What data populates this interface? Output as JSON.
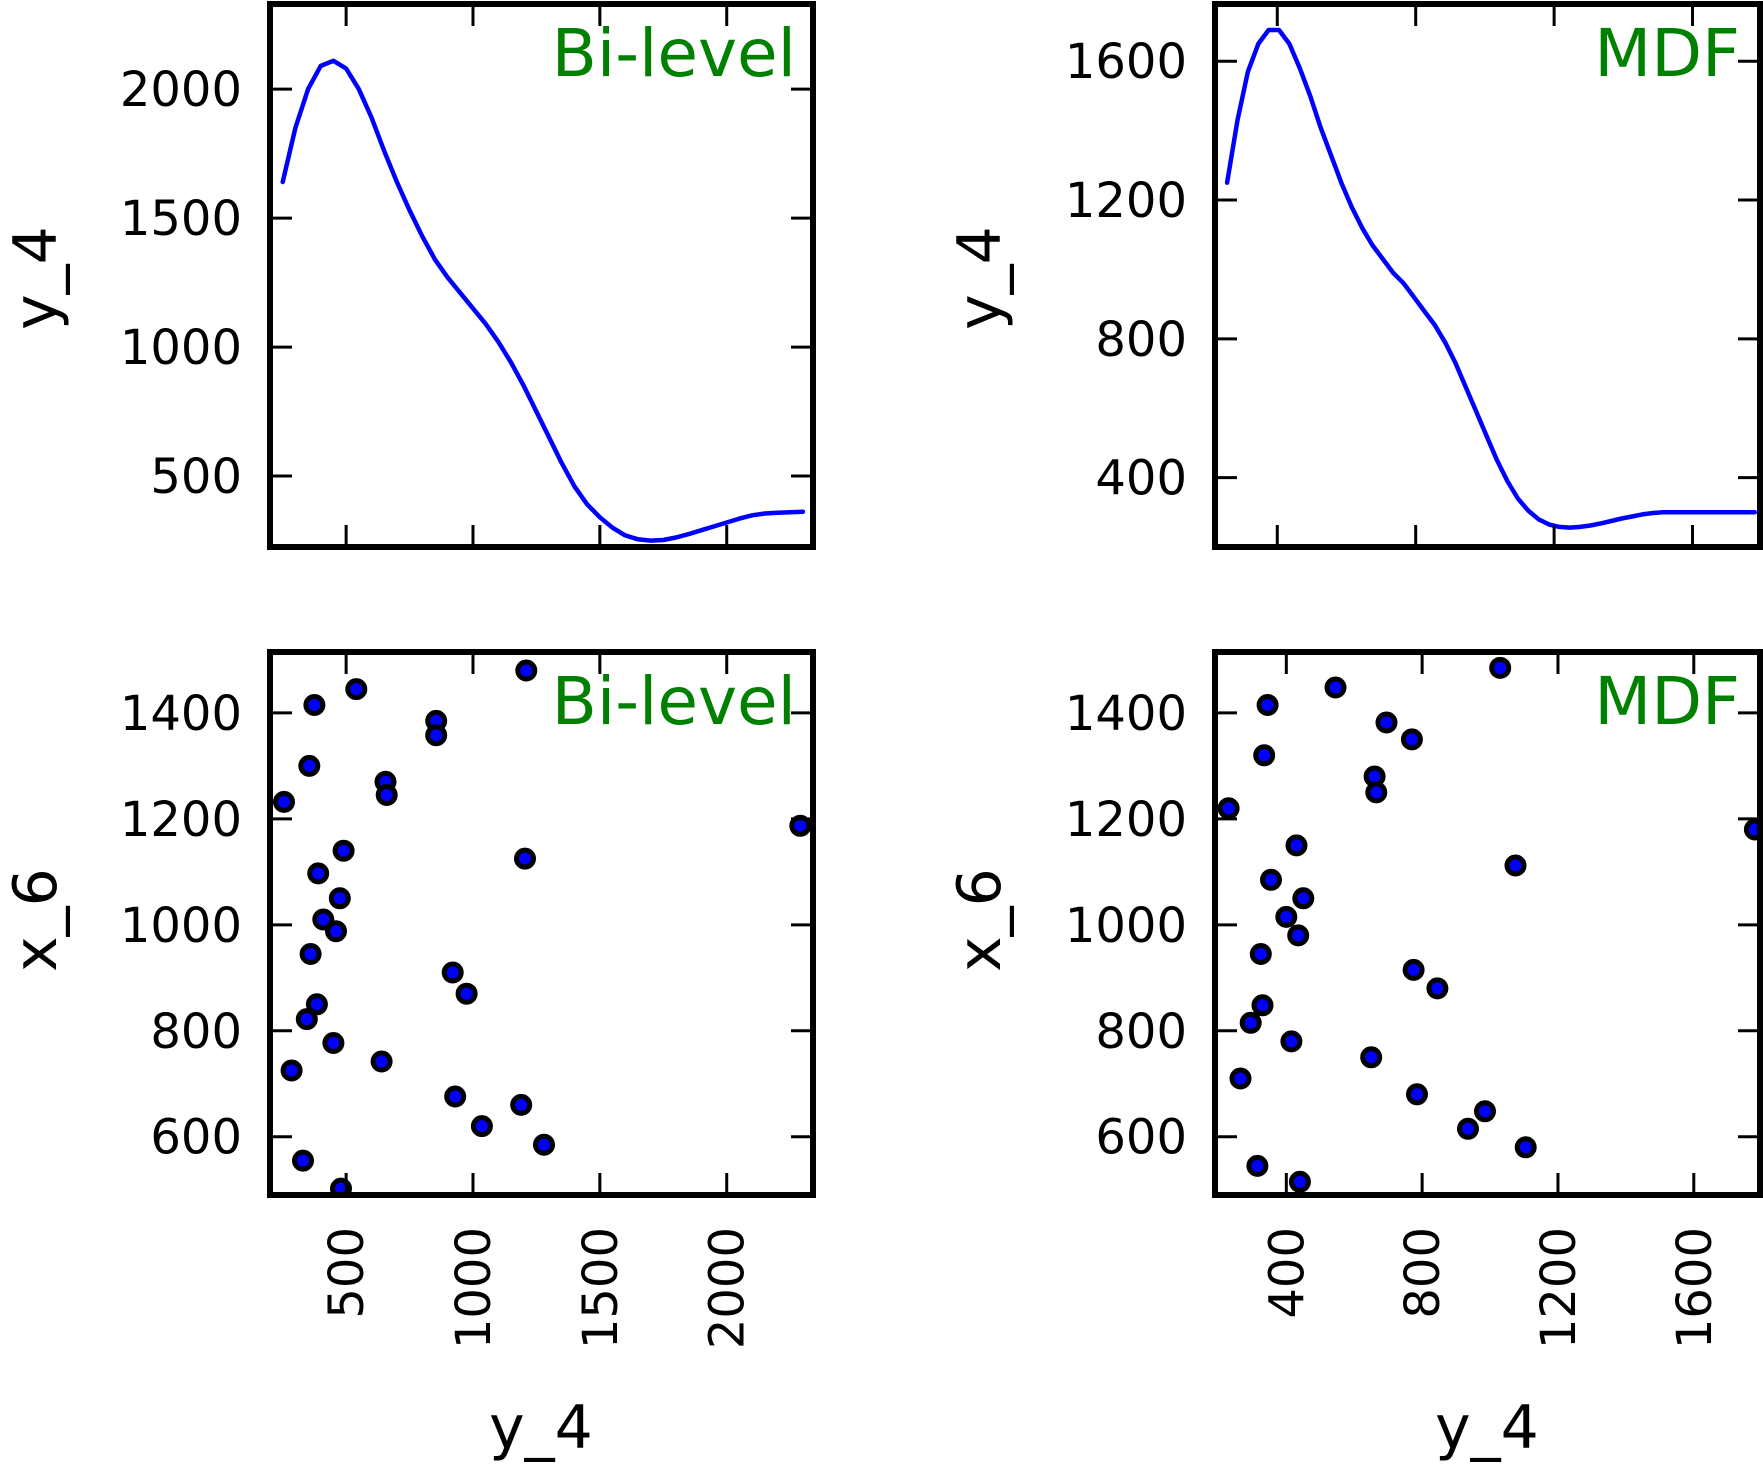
{
  "chart_data": [
    {
      "id": "top-left",
      "type": "line",
      "panel_label": "Bi-level",
      "ylabel": "y_4",
      "xlabel": "",
      "xlim": [
        200,
        2340
      ],
      "ylim": [
        225,
        2330
      ],
      "xticks": [
        500,
        1000,
        1500,
        2000
      ],
      "yticks": [
        500,
        1000,
        1500,
        2000
      ],
      "xtick_labels": [],
      "ytick_labels": [
        "500",
        "1000",
        "1500",
        "2000"
      ],
      "x": [
        250,
        300,
        350,
        400,
        450,
        500,
        550,
        600,
        650,
        700,
        750,
        800,
        850,
        900,
        950,
        1000,
        1050,
        1100,
        1150,
        1200,
        1250,
        1300,
        1350,
        1400,
        1450,
        1500,
        1550,
        1600,
        1650,
        1700,
        1750,
        1800,
        1850,
        1900,
        1950,
        2000,
        2050,
        2100,
        2150,
        2200,
        2250,
        2300
      ],
      "y": [
        1640,
        1850,
        2000,
        2090,
        2110,
        2080,
        2000,
        1890,
        1760,
        1640,
        1530,
        1430,
        1340,
        1270,
        1210,
        1150,
        1090,
        1020,
        940,
        850,
        750,
        650,
        550,
        460,
        390,
        340,
        300,
        270,
        255,
        250,
        252,
        262,
        275,
        290,
        305,
        320,
        335,
        348,
        355,
        358,
        360,
        362
      ]
    },
    {
      "id": "top-right",
      "type": "line",
      "panel_label": "MDF",
      "ylabel": "y_4",
      "xlabel": "",
      "xlim": [
        220,
        1795
      ],
      "ylim": [
        200,
        1765
      ],
      "xticks": [
        400,
        800,
        1200,
        1600
      ],
      "yticks": [
        400,
        800,
        1200,
        1600
      ],
      "xtick_labels": [],
      "ytick_labels": [
        "400",
        "800",
        "1200",
        "1600"
      ],
      "x": [
        255,
        285,
        315,
        345,
        375,
        405,
        435,
        465,
        495,
        525,
        555,
        585,
        615,
        645,
        675,
        705,
        735,
        765,
        795,
        825,
        855,
        885,
        915,
        945,
        975,
        1005,
        1035,
        1065,
        1095,
        1125,
        1155,
        1185,
        1215,
        1245,
        1275,
        1305,
        1335,
        1365,
        1395,
        1425,
        1455,
        1485,
        1515,
        1545,
        1575,
        1605,
        1635,
        1665,
        1695,
        1725,
        1755,
        1780
      ],
      "y": [
        1250,
        1430,
        1570,
        1650,
        1690,
        1690,
        1650,
        1580,
        1500,
        1410,
        1330,
        1250,
        1180,
        1120,
        1070,
        1030,
        990,
        960,
        920,
        880,
        840,
        790,
        730,
        660,
        590,
        520,
        450,
        390,
        340,
        305,
        280,
        265,
        258,
        256,
        258,
        262,
        268,
        275,
        282,
        288,
        294,
        298,
        300,
        300,
        300,
        300,
        300,
        300,
        300,
        300,
        300,
        300
      ]
    },
    {
      "id": "bottom-left",
      "type": "scatter",
      "panel_label": "Bi-level",
      "ylabel": "x_6",
      "xlabel": "y_4",
      "xlim": [
        200,
        2340
      ],
      "ylim": [
        490,
        1515
      ],
      "xticks": [
        500,
        1000,
        1500,
        2000
      ],
      "yticks": [
        600,
        800,
        1000,
        1200,
        1400
      ],
      "xtick_labels": [
        "500",
        "1000",
        "1500",
        "2000"
      ],
      "ytick_labels": [
        "600",
        "800",
        "1000",
        "1200",
        "1400"
      ],
      "points": [
        {
          "x": 255,
          "y": 1232
        },
        {
          "x": 285,
          "y": 725
        },
        {
          "x": 330,
          "y": 555
        },
        {
          "x": 345,
          "y": 822
        },
        {
          "x": 355,
          "y": 1300
        },
        {
          "x": 360,
          "y": 945
        },
        {
          "x": 375,
          "y": 1415
        },
        {
          "x": 385,
          "y": 850
        },
        {
          "x": 390,
          "y": 1097
        },
        {
          "x": 410,
          "y": 1010
        },
        {
          "x": 450,
          "y": 777
        },
        {
          "x": 460,
          "y": 988
        },
        {
          "x": 475,
          "y": 1050
        },
        {
          "x": 480,
          "y": 502
        },
        {
          "x": 490,
          "y": 1140
        },
        {
          "x": 540,
          "y": 1445
        },
        {
          "x": 640,
          "y": 742
        },
        {
          "x": 655,
          "y": 1270
        },
        {
          "x": 660,
          "y": 1245
        },
        {
          "x": 855,
          "y": 1385
        },
        {
          "x": 855,
          "y": 1358
        },
        {
          "x": 920,
          "y": 910
        },
        {
          "x": 930,
          "y": 676
        },
        {
          "x": 975,
          "y": 870
        },
        {
          "x": 1035,
          "y": 620
        },
        {
          "x": 1190,
          "y": 660
        },
        {
          "x": 1205,
          "y": 1125
        },
        {
          "x": 1210,
          "y": 1480
        },
        {
          "x": 1280,
          "y": 585
        },
        {
          "x": 2290,
          "y": 1187
        }
      ]
    },
    {
      "id": "bottom-right",
      "type": "scatter",
      "panel_label": "MDF",
      "ylabel": "x_6",
      "xlabel": "y_4",
      "xlim": [
        190,
        1795
      ],
      "ylim": [
        490,
        1515
      ],
      "xticks": [
        400,
        800,
        1200,
        1600
      ],
      "yticks": [
        600,
        800,
        1000,
        1200,
        1400
      ],
      "xtick_labels": [
        "400",
        "800",
        "1200",
        "1600"
      ],
      "ytick_labels": [
        "600",
        "800",
        "1000",
        "1200",
        "1400"
      ],
      "points": [
        {
          "x": 230,
          "y": 1220
        },
        {
          "x": 265,
          "y": 710
        },
        {
          "x": 295,
          "y": 815
        },
        {
          "x": 315,
          "y": 545
        },
        {
          "x": 325,
          "y": 945
        },
        {
          "x": 330,
          "y": 848
        },
        {
          "x": 335,
          "y": 1320
        },
        {
          "x": 345,
          "y": 1415
        },
        {
          "x": 355,
          "y": 1085
        },
        {
          "x": 400,
          "y": 1015
        },
        {
          "x": 415,
          "y": 780
        },
        {
          "x": 430,
          "y": 1150
        },
        {
          "x": 435,
          "y": 980
        },
        {
          "x": 440,
          "y": 515
        },
        {
          "x": 450,
          "y": 1050
        },
        {
          "x": 545,
          "y": 1448
        },
        {
          "x": 650,
          "y": 750
        },
        {
          "x": 660,
          "y": 1280
        },
        {
          "x": 665,
          "y": 1250
        },
        {
          "x": 695,
          "y": 1382
        },
        {
          "x": 770,
          "y": 1350
        },
        {
          "x": 775,
          "y": 915
        },
        {
          "x": 785,
          "y": 680
        },
        {
          "x": 845,
          "y": 880
        },
        {
          "x": 935,
          "y": 615
        },
        {
          "x": 985,
          "y": 648
        },
        {
          "x": 1030,
          "y": 1485
        },
        {
          "x": 1075,
          "y": 1112
        },
        {
          "x": 1105,
          "y": 580
        },
        {
          "x": 1780,
          "y": 1180
        }
      ]
    }
  ],
  "colors": {
    "line": "#0000ff",
    "marker_fill": "#0000ff",
    "marker_edge": "#000000",
    "panel_label": "#008000",
    "frame": "#000000"
  }
}
